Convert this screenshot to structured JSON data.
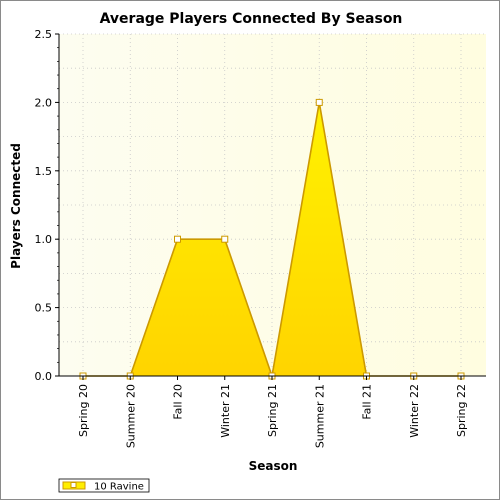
{
  "chart_data": {
    "type": "area",
    "title": "Average Players Connected By Season",
    "xlabel": "Season",
    "ylabel": "Players Connected",
    "categories": [
      "Spring 20",
      "Summer 20",
      "Fall 20",
      "Winter 21",
      "Spring 21",
      "Summer 21",
      "Fall 21",
      "Winter 22",
      "Spring 22"
    ],
    "series": [
      {
        "name": "10 Ravine",
        "values": [
          0,
          0,
          1,
          1,
          0,
          2,
          0,
          0,
          0
        ],
        "color": "#ffee00",
        "stroke": "#cc9900"
      }
    ],
    "ylim": [
      0,
      2.5
    ],
    "yticks": [
      "0.0",
      "0.5",
      "1.0",
      "1.5",
      "2.0",
      "2.5"
    ],
    "grid": true,
    "legend": "bottom-left"
  }
}
